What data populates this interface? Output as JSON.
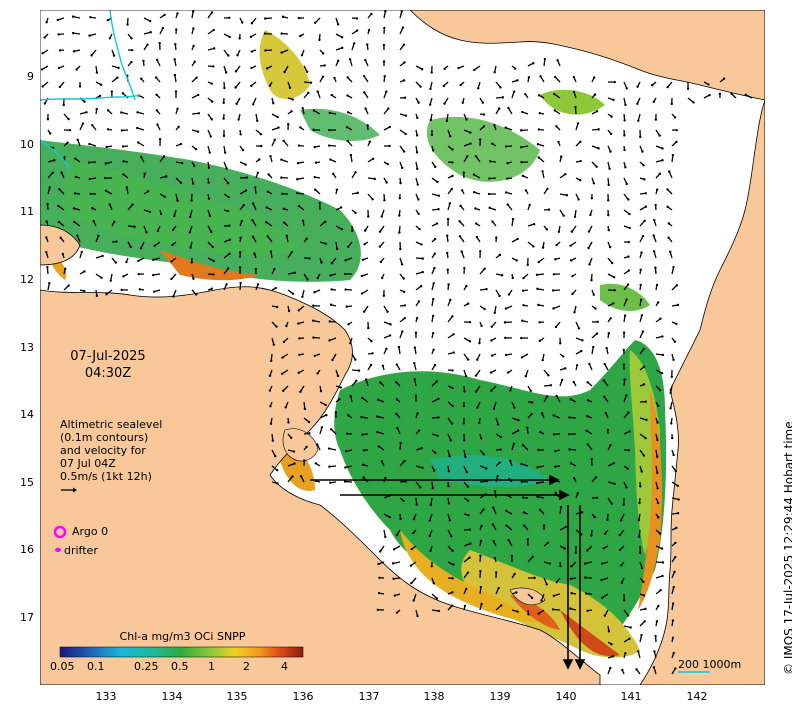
{
  "map": {
    "lat_ticks": [
      "9",
      "10",
      "11",
      "12",
      "13",
      "14",
      "15",
      "16",
      "17"
    ],
    "lon_ticks": [
      "133",
      "134",
      "135",
      "136",
      "137",
      "138",
      "139",
      "140",
      "141",
      "142"
    ]
  },
  "annotation": {
    "date": "07-Jul-2025",
    "time": "04:30Z",
    "altimetry_lines": [
      "Altimetric sealevel",
      "(0.1m contours)",
      "and velocity for",
      "07 Jul 04Z",
      "0.5m/s (1kt 12h)"
    ]
  },
  "legend": {
    "argo_label": "Argo 0",
    "drifter_label": "drifter",
    "argo_color": "#ff00ff",
    "drifter_color": "#ff00ff"
  },
  "colorbar": {
    "title": "Chl-a mg/m3 OCi SNPP",
    "tick_labels": [
      "0.05",
      "0.1",
      "0.25",
      "0.5",
      "1",
      "2",
      "4"
    ]
  },
  "scale": {
    "label": "200  1000m"
  },
  "credit": "© IMOS 17-Jul-2025 12:29:44 Hobart time",
  "colors": {
    "land": "#f8c89a",
    "ocean_nodata": "#ffffff",
    "chl_low": "#2a9d4a",
    "chl_high": "#e8641e"
  }
}
